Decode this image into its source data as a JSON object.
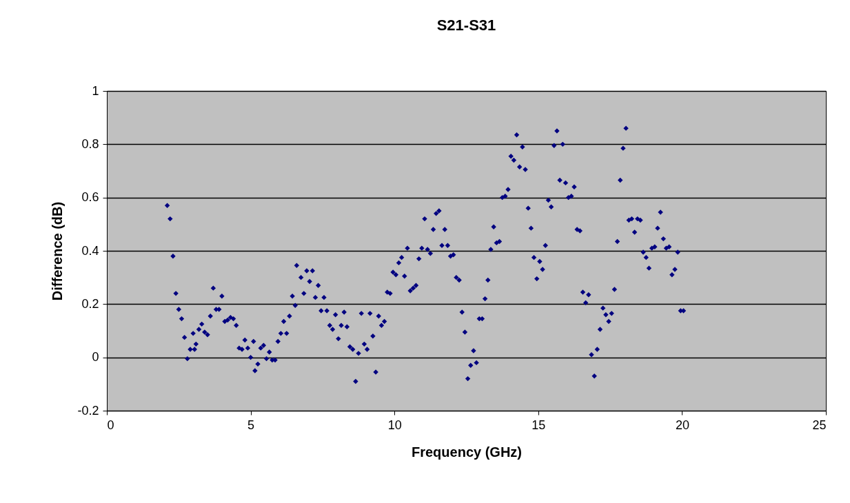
{
  "chart_data": {
    "type": "scatter",
    "title": "S21-S31",
    "xlabel": "Frequency (GHz)",
    "ylabel": "Difference (dB)",
    "xlim": [
      0,
      25
    ],
    "xticks": [
      0,
      5,
      10,
      15,
      20,
      25
    ],
    "ylim": [
      -0.2,
      1
    ],
    "yticks": [
      -0.2,
      0,
      0.2,
      0.4,
      0.6,
      0.8,
      1
    ],
    "grid": "y",
    "marker": "diamond",
    "legend": false,
    "x": [
      2.1,
      2.2,
      2.3,
      2.4,
      2.5,
      2.6,
      2.7,
      2.8,
      2.9,
      3.0,
      3.05,
      3.1,
      3.2,
      3.3,
      3.4,
      3.5,
      3.6,
      3.7,
      3.8,
      3.9,
      4.0,
      4.1,
      4.2,
      4.3,
      4.4,
      4.5,
      4.6,
      4.7,
      4.8,
      4.9,
      5.0,
      5.1,
      5.15,
      5.25,
      5.35,
      5.45,
      5.55,
      5.65,
      5.75,
      5.85,
      5.95,
      6.05,
      6.15,
      6.25,
      6.35,
      6.45,
      6.55,
      6.6,
      6.75,
      6.85,
      6.95,
      7.05,
      7.15,
      7.25,
      7.35,
      7.45,
      7.55,
      7.65,
      7.75,
      7.85,
      7.95,
      8.05,
      8.15,
      8.25,
      8.35,
      8.45,
      8.55,
      8.65,
      8.75,
      8.85,
      8.95,
      9.05,
      9.15,
      9.25,
      9.35,
      9.45,
      9.55,
      9.65,
      9.75,
      9.85,
      9.95,
      10.05,
      10.15,
      10.25,
      10.35,
      10.45,
      10.55,
      10.65,
      10.75,
      10.85,
      10.95,
      11.05,
      11.15,
      11.25,
      11.35,
      11.45,
      11.55,
      11.65,
      11.75,
      11.85,
      11.95,
      12.05,
      12.15,
      12.25,
      12.35,
      12.45,
      12.55,
      12.65,
      12.75,
      12.85,
      12.95,
      13.05,
      13.15,
      13.25,
      13.35,
      13.45,
      13.55,
      13.65,
      13.75,
      13.85,
      13.95,
      14.05,
      14.15,
      14.25,
      14.35,
      14.45,
      14.55,
      14.65,
      14.75,
      14.85,
      14.95,
      15.05,
      15.15,
      15.25,
      15.35,
      15.45,
      15.55,
      15.65,
      15.75,
      15.85,
      15.95,
      16.05,
      16.15,
      16.25,
      16.35,
      16.45,
      16.55,
      16.65,
      16.75,
      16.85,
      16.95,
      17.05,
      17.15,
      17.25,
      17.35,
      17.45,
      17.55,
      17.65,
      17.75,
      17.85,
      17.95,
      18.05,
      18.15,
      18.25,
      18.35,
      18.45,
      18.55,
      18.65,
      18.75,
      18.85,
      18.95,
      19.05,
      19.15,
      19.25,
      19.35,
      19.45,
      19.55,
      19.65,
      19.75,
      19.85,
      19.95,
      20.05
    ],
    "series": [
      {
        "color": "#000080",
        "values": [
          0.57,
          0.52,
          0.38,
          0.24,
          0.18,
          0.145,
          0.075,
          -0.005,
          0.03,
          0.09,
          0.03,
          0.05,
          0.105,
          0.125,
          0.095,
          0.085,
          0.155,
          0.26,
          0.18,
          0.18,
          0.23,
          0.135,
          0.14,
          0.15,
          0.145,
          0.12,
          0.035,
          0.03,
          0.065,
          0.035,
          0.0,
          0.06,
          -0.05,
          -0.025,
          0.035,
          0.045,
          -0.005,
          0.02,
          -0.01,
          -0.01,
          0.06,
          0.09,
          0.135,
          0.09,
          0.155,
          0.23,
          0.195,
          0.345,
          0.3,
          0.24,
          0.325,
          0.285,
          0.325,
          0.225,
          0.27,
          0.175,
          0.225,
          0.175,
          0.12,
          0.105,
          0.16,
          0.07,
          0.12,
          0.17,
          0.115,
          0.04,
          0.03,
          -0.09,
          0.015,
          0.165,
          0.05,
          0.03,
          0.165,
          0.08,
          -0.055,
          0.155,
          0.12,
          0.135,
          0.245,
          0.24,
          0.32,
          0.31,
          0.355,
          0.375,
          0.305,
          0.41,
          0.25,
          0.26,
          0.27,
          0.37,
          0.41,
          0.52,
          0.405,
          0.39,
          0.48,
          0.54,
          0.55,
          0.42,
          0.48,
          0.42,
          0.38,
          0.385,
          0.3,
          0.29,
          0.17,
          0.095,
          -0.08,
          -0.03,
          0.025,
          -0.02,
          0.145,
          0.145,
          0.22,
          0.29,
          0.405,
          0.49,
          0.43,
          0.435,
          0.6,
          0.605,
          0.63,
          0.755,
          0.74,
          0.835,
          0.715,
          0.79,
          0.705,
          0.56,
          0.485,
          0.375,
          0.295,
          0.36,
          0.33,
          0.42,
          0.59,
          0.565,
          0.795,
          0.85,
          0.665,
          0.8,
          0.655,
          0.6,
          0.605,
          0.64,
          0.48,
          0.475,
          0.245,
          0.205,
          0.235,
          0.01,
          -0.07,
          0.03,
          0.105,
          0.185,
          0.16,
          0.135,
          0.165,
          0.255,
          0.435,
          0.665,
          0.785,
          0.86,
          0.515,
          0.52,
          0.47,
          0.52,
          0.515,
          0.395,
          0.375,
          0.335,
          0.41,
          0.415,
          0.485,
          0.545,
          0.445,
          0.41,
          0.415,
          0.31,
          0.33,
          0.395,
          0.175,
          0.175
        ]
      }
    ]
  }
}
